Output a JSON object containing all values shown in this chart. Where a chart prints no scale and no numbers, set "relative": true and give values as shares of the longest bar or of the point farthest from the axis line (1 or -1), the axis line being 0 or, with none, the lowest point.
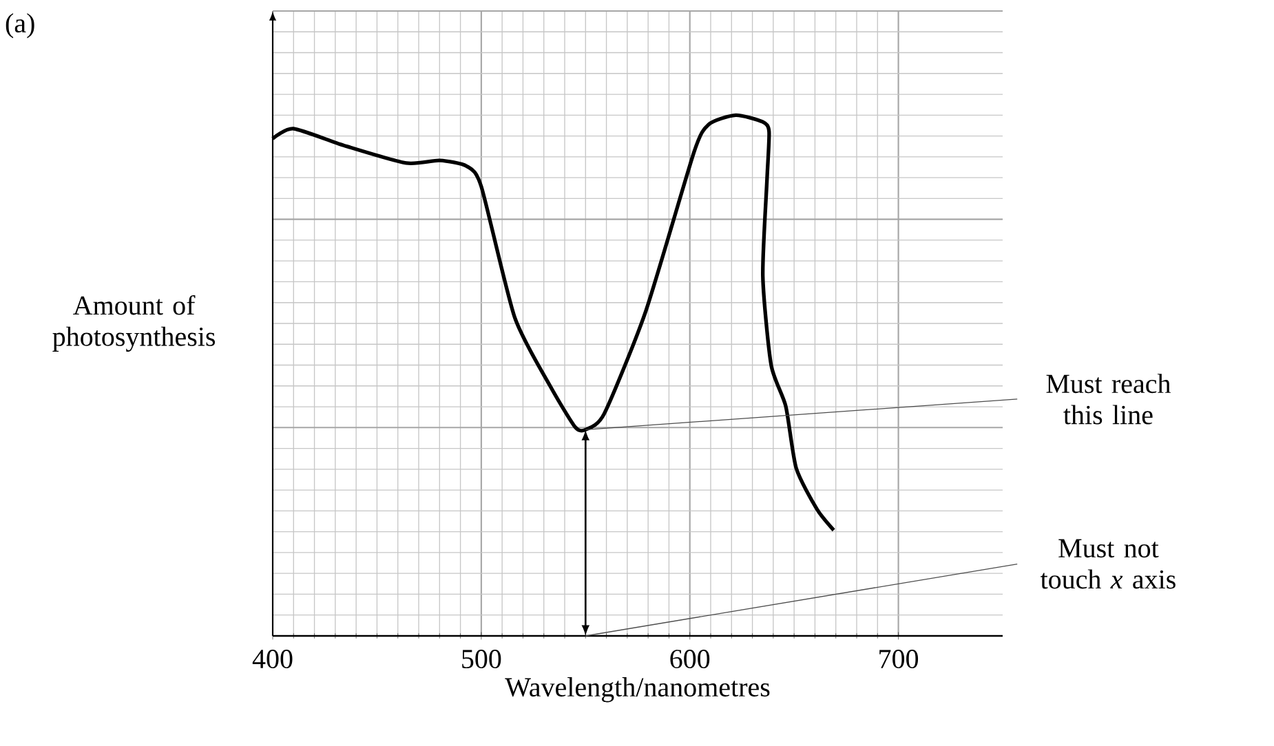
{
  "chart_data": {
    "type": "line",
    "relative": true,
    "xlabel": "Wavelength/nanometres",
    "ylabel": "Amount of photosynthesis",
    "xlim": [
      400,
      750
    ],
    "xticks": [
      400,
      500,
      600,
      700
    ],
    "grid": true,
    "color": "#000000",
    "x": [
      400,
      410,
      434,
      464,
      480,
      493,
      500,
      516,
      533,
      545,
      550,
      559,
      579,
      602,
      609,
      622,
      635,
      638,
      637,
      635,
      639,
      646,
      651,
      661,
      669
    ],
    "values": [
      0.955,
      0.974,
      0.942,
      0.908,
      0.913,
      0.902,
      0.863,
      0.612,
      0.48,
      0.401,
      0.396,
      0.427,
      0.625,
      0.929,
      0.982,
      1.0,
      0.987,
      0.968,
      0.876,
      0.691,
      0.52,
      0.441,
      0.322,
      0.243,
      0.203
    ],
    "annotations": [
      "(a)",
      {
        "text": "Must reach this line",
        "x": 550,
        "y": 0.396
      },
      "Must not touch *x* axis"
    ]
  }
}
